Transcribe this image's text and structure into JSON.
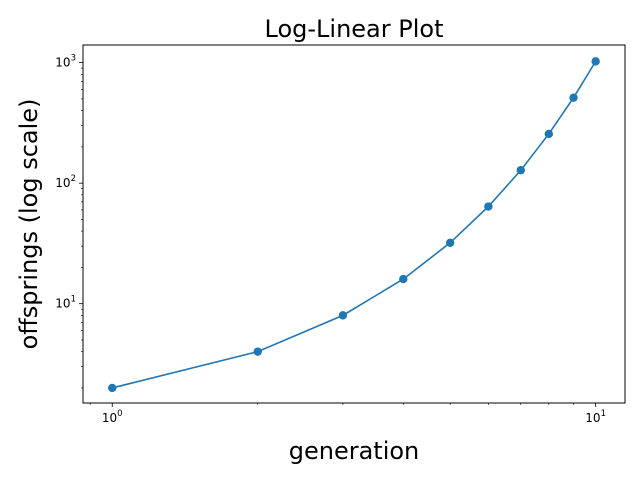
{
  "chart_data": {
    "type": "line",
    "title": "Log-Linear Plot",
    "xlabel": "generation",
    "ylabel": "offsprings (log scale)",
    "xscale": "log",
    "yscale": "log",
    "xlim": [
      0.87,
      11.5
    ],
    "ylim": [
      1.5,
      1400
    ],
    "grid": false,
    "color": "#1f77b4",
    "marker": "circle",
    "series": [
      {
        "x": [
          1,
          2,
          3,
          4,
          5,
          6,
          7,
          8,
          9,
          10
        ],
        "y": [
          2,
          4,
          8,
          16,
          32,
          64,
          128,
          256,
          512,
          1024
        ]
      }
    ],
    "x_ticks": [
      {
        "base": "10",
        "exp": "0",
        "value": 1
      },
      {
        "base": "10",
        "exp": "1",
        "value": 10
      }
    ],
    "y_ticks": [
      {
        "base": "10",
        "exp": "1",
        "value": 10
      },
      {
        "base": "10",
        "exp": "2",
        "value": 100
      },
      {
        "base": "10",
        "exp": "3",
        "value": 1000
      }
    ]
  }
}
